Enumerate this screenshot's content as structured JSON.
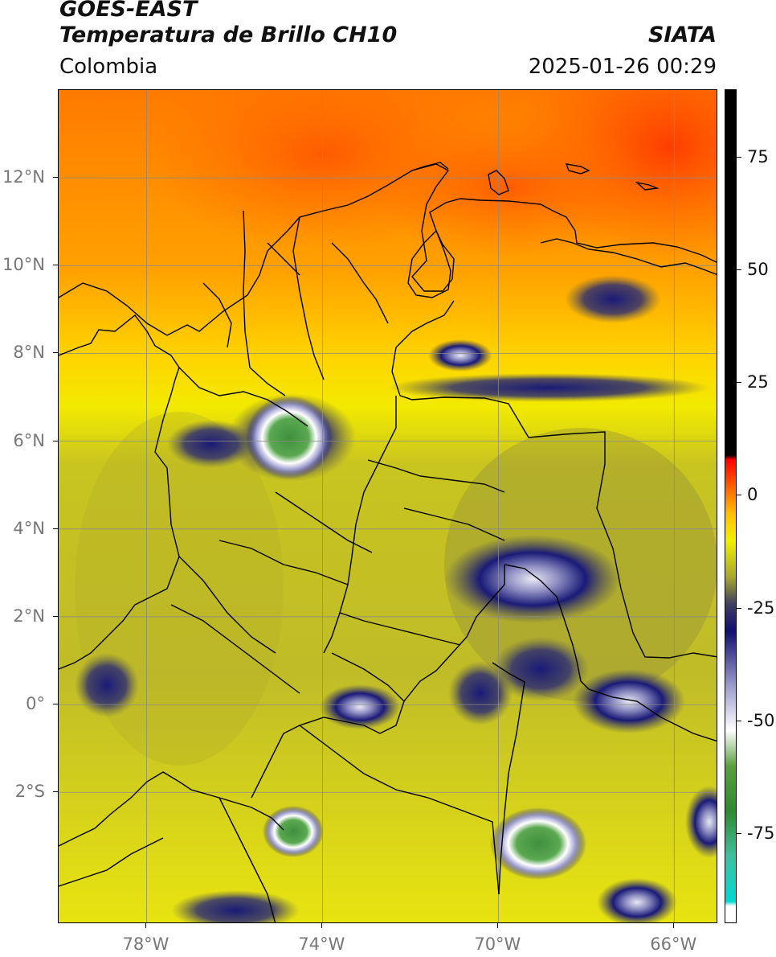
{
  "header": {
    "satellite": "GOES-EAST",
    "product": "Temperatura de Brillo CH10",
    "region": "Colombia",
    "agency": "SIATA",
    "datetime": "2025-01-26 00:29"
  },
  "map": {
    "lon_range": [
      -80,
      -65
    ],
    "lat_range": [
      -5,
      14
    ],
    "lat_labels": [
      {
        "value": 12,
        "text": "12°N"
      },
      {
        "value": 10,
        "text": "10°N"
      },
      {
        "value": 8,
        "text": "8°N"
      },
      {
        "value": 6,
        "text": "6°N"
      },
      {
        "value": 4,
        "text": "4°N"
      },
      {
        "value": 2,
        "text": "2°N"
      },
      {
        "value": 0,
        "text": "0°"
      },
      {
        "value": -2,
        "text": "2°S"
      }
    ],
    "lon_labels": [
      {
        "value": -78,
        "text": "78°W"
      },
      {
        "value": -74,
        "text": "74°W"
      },
      {
        "value": -70,
        "text": "70°W"
      },
      {
        "value": -66,
        "text": "66°W"
      }
    ],
    "gridlines": true
  },
  "colorbar": {
    "range": [
      -95,
      90
    ],
    "ticks": [
      {
        "value": 75,
        "text": "75"
      },
      {
        "value": 50,
        "text": "50"
      },
      {
        "value": 25,
        "text": "25"
      },
      {
        "value": 0,
        "text": "0"
      },
      {
        "value": -25,
        "text": "-25"
      },
      {
        "value": -50,
        "text": "-50"
      },
      {
        "value": -75,
        "text": "-75"
      }
    ],
    "stops": [
      {
        "value": -95,
        "color": "#ffffff"
      },
      {
        "value": -91,
        "color": "#ffffff"
      },
      {
        "value": -90,
        "color": "#00d8d0"
      },
      {
        "value": -80,
        "color": "#40c0a0"
      },
      {
        "value": -70,
        "color": "#2f8a2f"
      },
      {
        "value": -60,
        "color": "#5aa040"
      },
      {
        "value": -52,
        "color": "#ffffff"
      },
      {
        "value": -42,
        "color": "#9a9acc"
      },
      {
        "value": -30,
        "color": "#101070"
      },
      {
        "value": -24,
        "color": "#404060"
      },
      {
        "value": -18,
        "color": "#a8a830"
      },
      {
        "value": -10,
        "color": "#f0f000"
      },
      {
        "value": -4,
        "color": "#ffc000"
      },
      {
        "value": 4,
        "color": "#ff4000"
      },
      {
        "value": 8,
        "color": "#ff0000"
      },
      {
        "value": 9,
        "color": "#000000"
      },
      {
        "value": 90,
        "color": "#000000"
      }
    ]
  }
}
